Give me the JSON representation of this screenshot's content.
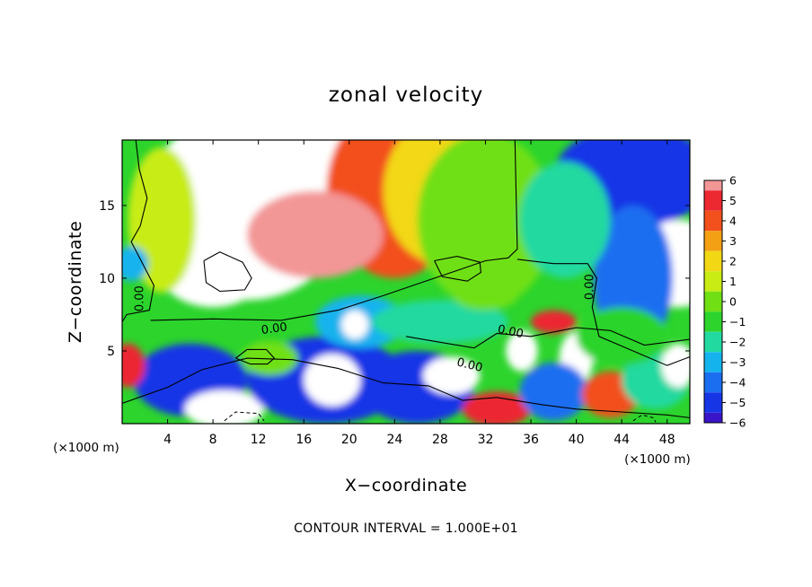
{
  "chart_data": {
    "type": "heatmap",
    "title": "zonal velocity",
    "xlabel": "X−coordinate",
    "ylabel": "Z−coordinate",
    "x_unit": "(×1000 m)",
    "y_unit": "(×1000 m)",
    "xlim": [
      0,
      50
    ],
    "ylim": [
      0,
      19.5
    ],
    "x_ticks": [
      4,
      8,
      12,
      16,
      20,
      24,
      28,
      32,
      36,
      40,
      44,
      48
    ],
    "x_tick_labels": [
      "4",
      "8",
      "12",
      "16",
      "20",
      "24",
      "28",
      "32",
      "36",
      "40",
      "44",
      "48"
    ],
    "y_ticks": [
      5,
      10,
      15
    ],
    "y_tick_labels": [
      "5",
      "10",
      "15"
    ],
    "colorbar": {
      "min": -6,
      "max": 6,
      "levels": [
        6,
        5,
        4,
        3,
        2,
        1,
        0,
        -1,
        -2,
        -3,
        -4,
        -5,
        -6
      ],
      "labels": [
        "6",
        "5",
        "4",
        "3",
        "2",
        "1",
        "0",
        "−1",
        "−2",
        "−3",
        "−4",
        "−5",
        "−6"
      ]
    },
    "contour_labels": [
      {
        "text": "0.00",
        "x": 1.6,
        "y": 8.6,
        "angle": -90
      },
      {
        "text": "0.00",
        "x": 13.4,
        "y": 6.5,
        "angle": -8
      },
      {
        "text": "0.00",
        "x": 34.2,
        "y": 6.3,
        "angle": 12
      },
      {
        "text": "0.00",
        "x": 30.6,
        "y": 4.0,
        "angle": 14
      },
      {
        "text": "0.00",
        "x": 41.2,
        "y": 9.4,
        "angle": -90
      }
    ],
    "field_blobs": [
      {
        "x": 11,
        "y": 15,
        "rx": 9,
        "ry": 6.5,
        "v": 7
      },
      {
        "x": 19,
        "y": 17,
        "rx": 6,
        "ry": 4.5,
        "v": 7
      },
      {
        "x": 8,
        "y": 11,
        "rx": 5,
        "ry": 3,
        "v": 7
      },
      {
        "x": 24,
        "y": 16,
        "rx": 6,
        "ry": 6,
        "v": 4
      },
      {
        "x": 28,
        "y": 16,
        "rx": 5,
        "ry": 5,
        "v": 2.5
      },
      {
        "x": 3.5,
        "y": 14,
        "rx": 3,
        "ry": 5,
        "v": 1.5
      },
      {
        "x": 17,
        "y": 13,
        "rx": 6,
        "ry": 3,
        "v": 6
      },
      {
        "x": 32,
        "y": 14,
        "rx": 6,
        "ry": 6,
        "v": 0.8
      },
      {
        "x": 45,
        "y": 17,
        "rx": 7,
        "ry": 3.5,
        "v": -5
      },
      {
        "x": 49,
        "y": 11,
        "rx": 4,
        "ry": 3,
        "v": 6.5
      },
      {
        "x": 45,
        "y": 10,
        "rx": 3.5,
        "ry": 5,
        "v": -4
      },
      {
        "x": 39,
        "y": 14,
        "rx": 4,
        "ry": 4,
        "v": -1.5
      },
      {
        "x": 6,
        "y": 3,
        "rx": 5,
        "ry": 2.5,
        "v": -4.5
      },
      {
        "x": 9,
        "y": 1,
        "rx": 3.5,
        "ry": 1.3,
        "v": 7
      },
      {
        "x": 18,
        "y": 3,
        "rx": 7,
        "ry": 3,
        "v": -4.5
      },
      {
        "x": 18.5,
        "y": 3,
        "rx": 2.5,
        "ry": 1.8,
        "v": 7
      },
      {
        "x": 21,
        "y": 7,
        "rx": 4,
        "ry": 1.8,
        "v": -3
      },
      {
        "x": 20.5,
        "y": 6.8,
        "rx": 1.2,
        "ry": 1,
        "v": 7
      },
      {
        "x": 13,
        "y": 4.5,
        "rx": 2.5,
        "ry": 1.2,
        "v": 0.5
      },
      {
        "x": 26,
        "y": 2.5,
        "rx": 5,
        "ry": 2.5,
        "v": -4.5
      },
      {
        "x": 29,
        "y": 3.3,
        "rx": 2.5,
        "ry": 1.3,
        "v": 7
      },
      {
        "x": 33,
        "y": 1,
        "rx": 3,
        "ry": 1.2,
        "v": 5.5
      },
      {
        "x": 35.2,
        "y": 5,
        "rx": 1.4,
        "ry": 1.4,
        "v": 7
      },
      {
        "x": 40,
        "y": 4.5,
        "rx": 1.5,
        "ry": 1.8,
        "v": 7
      },
      {
        "x": 38,
        "y": 7,
        "rx": 2,
        "ry": 0.8,
        "v": 5.5
      },
      {
        "x": 38,
        "y": 2.2,
        "rx": 3,
        "ry": 2,
        "v": -3.5
      },
      {
        "x": 43,
        "y": 2,
        "rx": 2.5,
        "ry": 1.6,
        "v": 4.5
      },
      {
        "x": 47,
        "y": 3,
        "rx": 3,
        "ry": 2,
        "v": -1.5
      },
      {
        "x": 49,
        "y": 4,
        "rx": 1.5,
        "ry": 1.5,
        "v": 7
      },
      {
        "x": 0.5,
        "y": 4,
        "rx": 1.5,
        "ry": 1.5,
        "v": 5
      },
      {
        "x": 0.8,
        "y": 11,
        "rx": 1.5,
        "ry": 1.2,
        "v": -3
      },
      {
        "x": 28,
        "y": 7,
        "rx": 6,
        "ry": 1.5,
        "v": -2
      },
      {
        "x": 44,
        "y": 6,
        "rx": 4,
        "ry": 2,
        "v": -1
      },
      {
        "x": 32,
        "y": 9,
        "rx": 3,
        "ry": 1.2,
        "v": 0.5
      }
    ],
    "contour_lines": [
      [
        [
          1.2,
          19.5
        ],
        [
          1.5,
          17.5
        ],
        [
          2.2,
          15.5
        ],
        [
          1.6,
          13.6
        ],
        [
          0.8,
          12.5
        ],
        [
          1.8,
          11
        ],
        [
          2.8,
          9.5
        ],
        [
          2.4,
          7.8
        ],
        [
          0.4,
          7.5
        ],
        [
          0,
          7
        ]
      ],
      [
        [
          2.5,
          7.1
        ],
        [
          8,
          7.2
        ],
        [
          14,
          7.1
        ],
        [
          19,
          7.8
        ],
        [
          23,
          8.8
        ],
        [
          26,
          9.6
        ],
        [
          29,
          10.4
        ],
        [
          32,
          11.2
        ],
        [
          34,
          11.4
        ],
        [
          34.8,
          12
        ],
        [
          34.6,
          19.5
        ]
      ],
      [
        [
          34.8,
          11.3
        ],
        [
          38,
          11
        ],
        [
          41,
          11
        ],
        [
          41.8,
          10
        ],
        [
          41.4,
          8
        ],
        [
          42,
          6
        ],
        [
          45,
          5
        ],
        [
          48,
          4
        ],
        [
          50,
          4.6
        ]
      ],
      [
        [
          25,
          6
        ],
        [
          28,
          5.6
        ],
        [
          31,
          5.2
        ],
        [
          33,
          6.2
        ],
        [
          36,
          6
        ],
        [
          40,
          6.6
        ],
        [
          43,
          6.4
        ],
        [
          46,
          5.4
        ],
        [
          50,
          5.8
        ]
      ],
      [
        [
          0,
          1.4
        ],
        [
          4,
          2.5
        ],
        [
          7,
          3.7
        ],
        [
          11,
          4.5
        ],
        [
          15,
          4.4
        ],
        [
          19,
          3.8
        ],
        [
          23,
          2.8
        ],
        [
          27,
          2.6
        ],
        [
          30,
          1.6
        ],
        [
          33,
          1.8
        ],
        [
          37,
          1.3
        ],
        [
          40,
          1
        ],
        [
          44,
          0.8
        ],
        [
          48,
          0.6
        ],
        [
          50,
          0.4
        ]
      ],
      [
        [
          10,
          4.5
        ],
        [
          11.3,
          4.1
        ],
        [
          12.8,
          4.1
        ],
        [
          13.4,
          4.5
        ],
        [
          12.7,
          5.1
        ],
        [
          11,
          5.1
        ],
        [
          10,
          4.5
        ]
      ],
      [
        [
          7.2,
          11.2
        ],
        [
          8.6,
          11.8
        ],
        [
          10.6,
          11.1
        ],
        [
          11.4,
          10
        ],
        [
          10.8,
          9.2
        ],
        [
          8.6,
          9.1
        ],
        [
          7.4,
          9.7
        ],
        [
          7.2,
          11.2
        ]
      ],
      [
        [
          27.5,
          11.2
        ],
        [
          29.5,
          11.5
        ],
        [
          31.5,
          11.1
        ],
        [
          31.6,
          10.4
        ],
        [
          30.4,
          9.8
        ],
        [
          28.2,
          10.1
        ],
        [
          27.5,
          11.2
        ]
      ]
    ],
    "dashed_lines": [
      [
        [
          9,
          0.2
        ],
        [
          10,
          0.8
        ],
        [
          12,
          0.7
        ],
        [
          12.5,
          0.2
        ]
      ],
      [
        [
          45,
          0.2
        ],
        [
          45.8,
          0.6
        ],
        [
          46.8,
          0.4
        ],
        [
          47,
          0.1
        ]
      ]
    ]
  },
  "footer": "CONTOUR INTERVAL = 1.000E+01"
}
